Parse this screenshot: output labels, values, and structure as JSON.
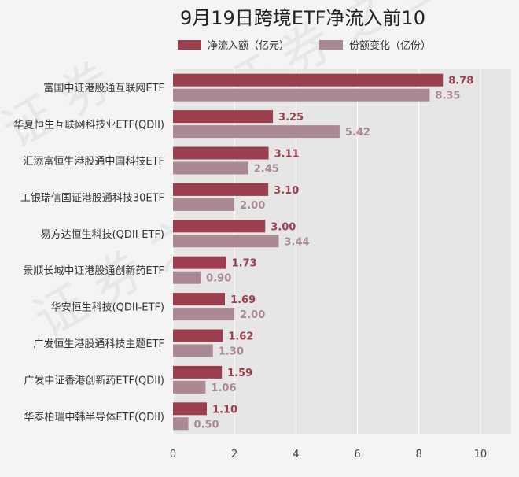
{
  "chart_data": {
    "type": "bar",
    "orientation": "horizontal",
    "title": "9月19日跨境ETF净流入前10",
    "categories": [
      "富国中证港股通互联网ETF",
      "华夏恒生互联网科技业ETF(QDII)",
      "汇添富恒生港股通中国科技ETF",
      "工银瑞信国证港股通科技30ETF",
      "易方达恒生科技(QDII-ETF)",
      "景顺长城中证港股通创新药ETF",
      "华安恒生科技(QDII-ETF)",
      "广发恒生港股通科技主题ETF",
      "广发中证香港创新药ETF(QDII)",
      "华泰柏瑞中韩半导体ETF(QDII)"
    ],
    "series": [
      {
        "name": "净流入额（亿元）",
        "color": "#9b3f4f",
        "values": [
          8.78,
          3.25,
          3.11,
          3.1,
          3.0,
          1.73,
          1.69,
          1.62,
          1.59,
          1.1
        ],
        "labels": [
          "8.78",
          "3.25",
          "3.11",
          "3.10",
          "3.00",
          "1.73",
          "1.69",
          "1.62",
          "1.59",
          "1.10"
        ]
      },
      {
        "name": "份额变化（亿份）",
        "color": "#ab8992",
        "values": [
          8.35,
          5.42,
          2.45,
          2.0,
          3.44,
          0.9,
          2.0,
          1.3,
          1.06,
          0.5
        ],
        "labels": [
          "8.35",
          "5.42",
          "2.45",
          "2.00",
          "3.44",
          "0.90",
          "2.00",
          "1.30",
          "1.06",
          "0.50"
        ]
      }
    ],
    "xlim": [
      0,
      11
    ],
    "xticks": [
      "0",
      "2",
      "4",
      "6",
      "8",
      "10"
    ],
    "grid": true,
    "legend_position": "top"
  }
}
